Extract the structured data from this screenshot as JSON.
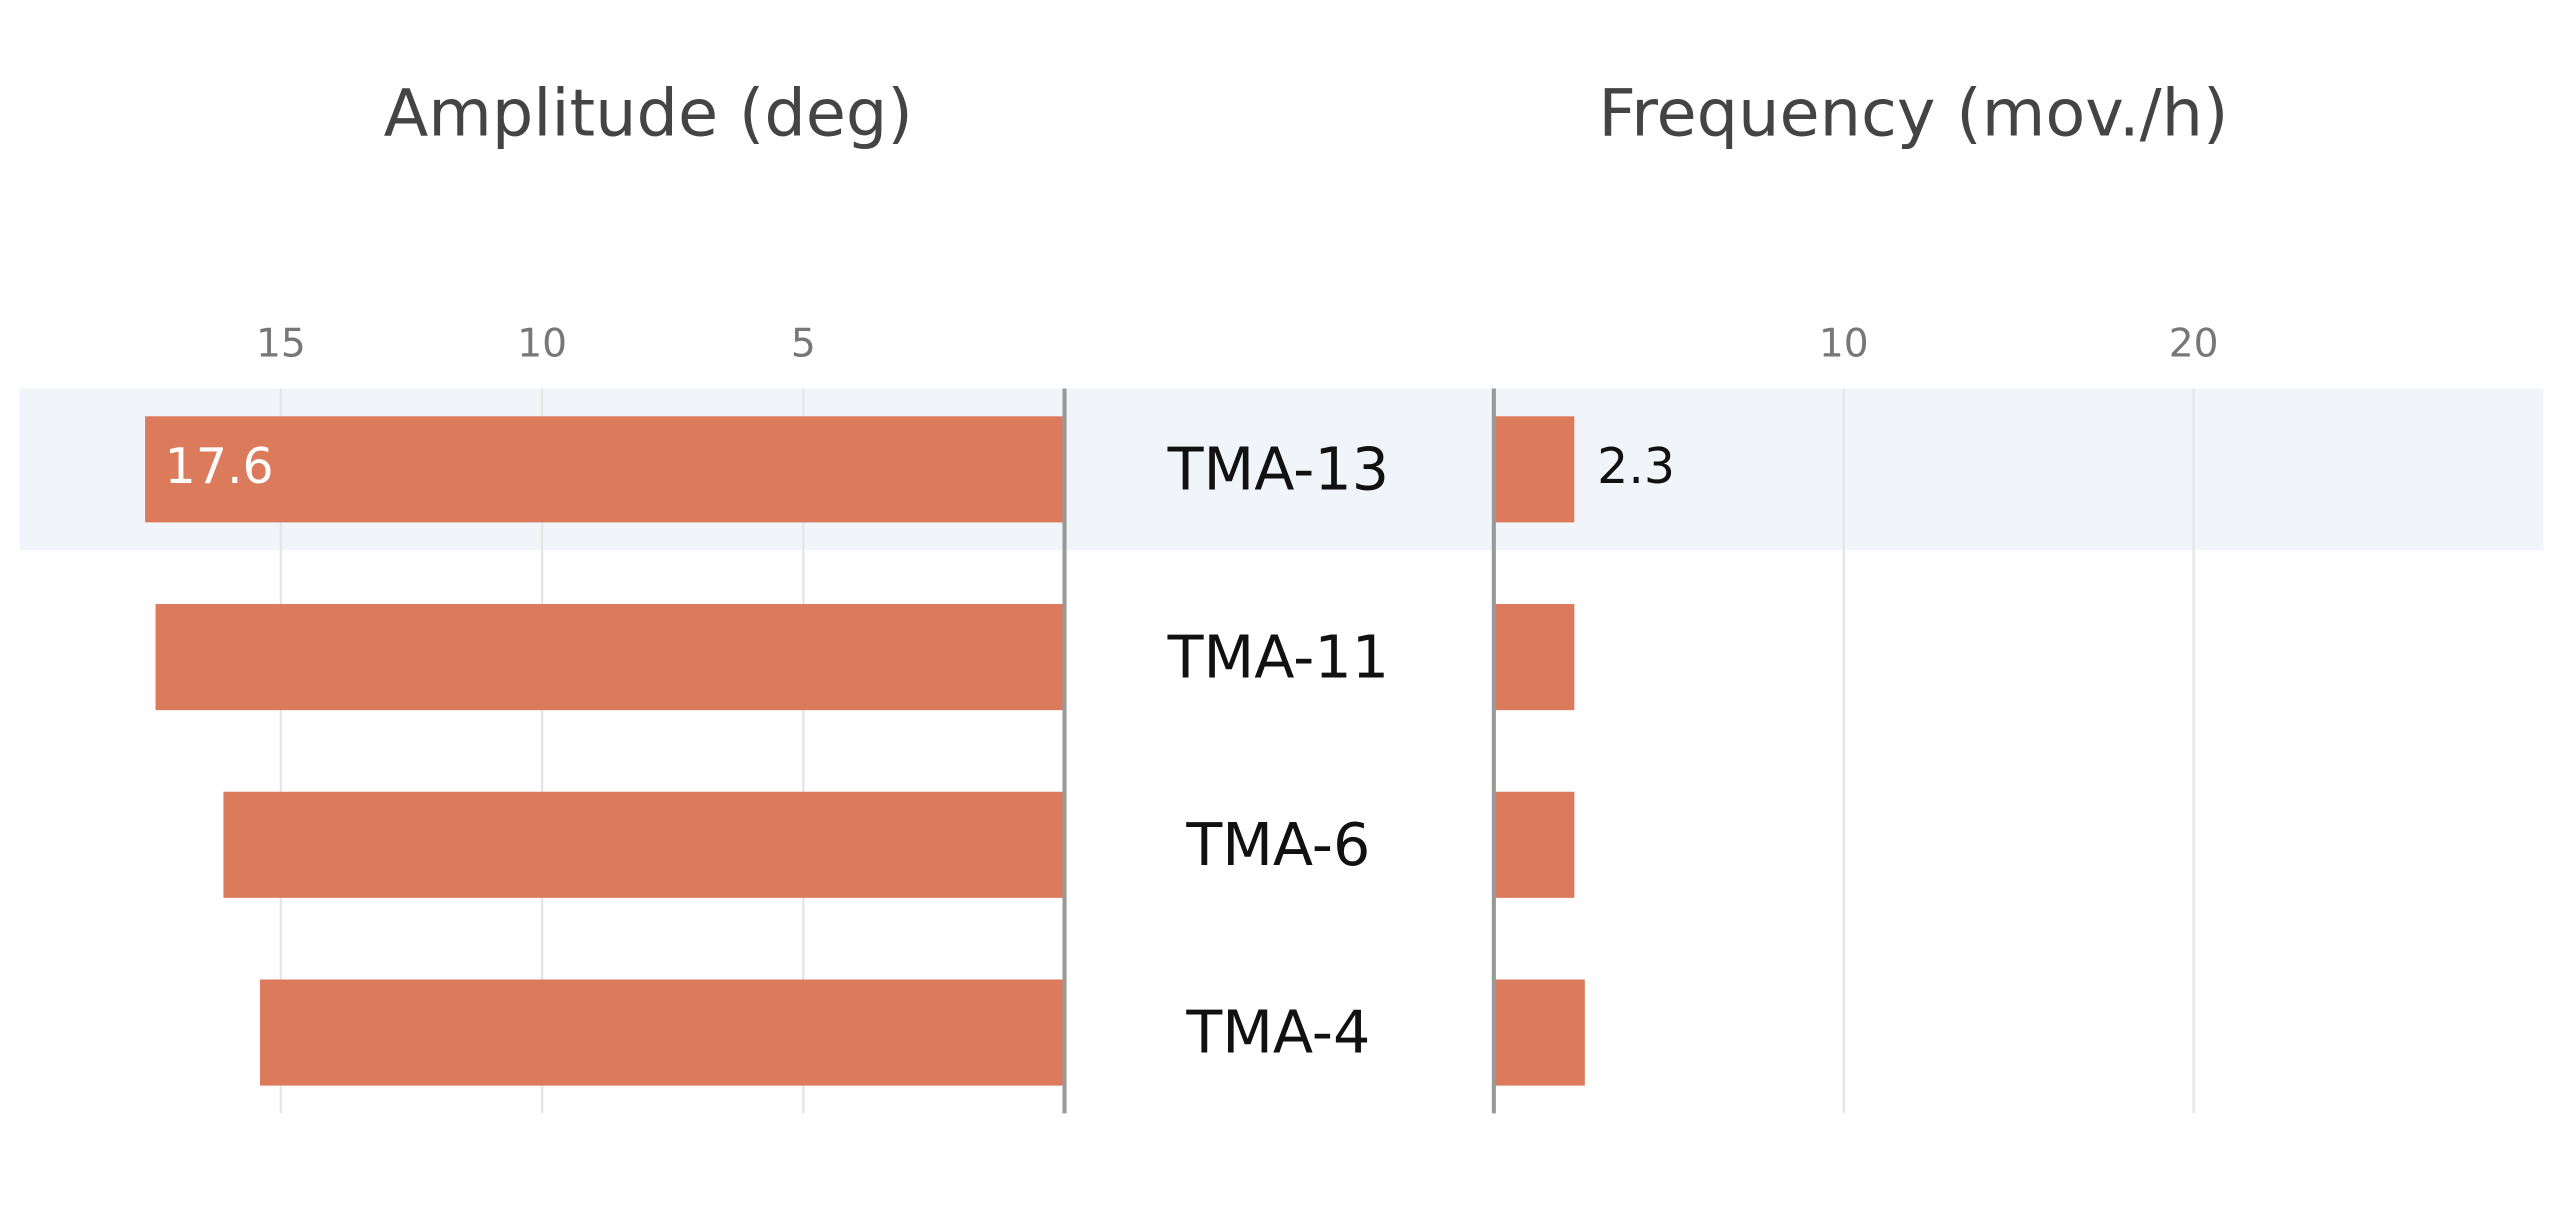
{
  "chart_data": [
    {
      "type": "bar",
      "title": "Amplitude (deg)",
      "categories": [
        "TMA-13",
        "TMA-11",
        "TMA-6",
        "TMA-4"
      ],
      "values": [
        17.6,
        17.4,
        16.1,
        15.4
      ],
      "color": "#dc7a5c",
      "xlim": [
        0,
        20
      ],
      "xticks": [
        5,
        10,
        15
      ],
      "reversed": true,
      "grid": true,
      "highlight_index": 0
    },
    {
      "type": "bar",
      "title": "Frequency (mov./h)",
      "values": [
        2.3,
        2.3,
        2.3,
        2.6
      ],
      "color": "#dc7a5c",
      "xlim": [
        0,
        30
      ],
      "xticks": [
        10,
        20
      ],
      "reversed": false,
      "grid": true,
      "highlight_index": 0
    }
  ]
}
